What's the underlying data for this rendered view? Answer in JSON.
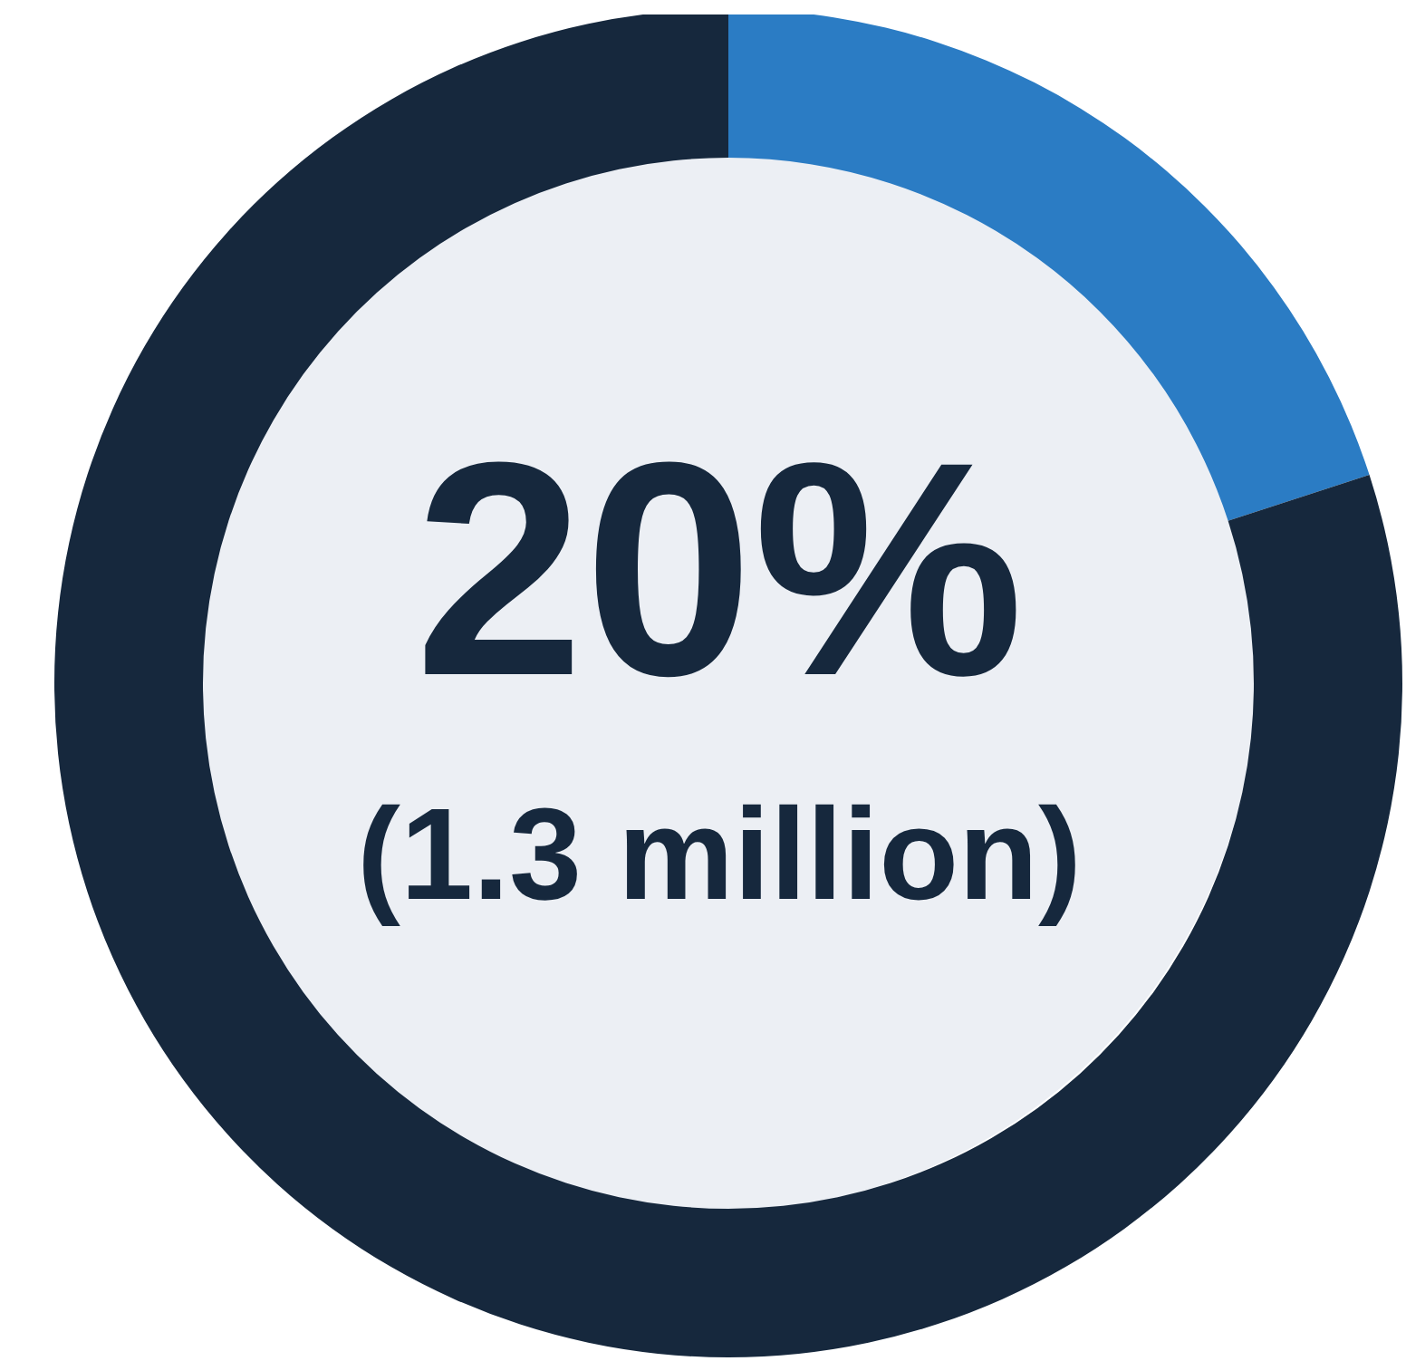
{
  "chart_data": {
    "type": "donut",
    "categories": [
      null,
      null
    ],
    "values": [
      20,
      80
    ],
    "colors": [
      "#2b7cc4",
      "#16283d"
    ],
    "annotations": [
      "20%",
      "(1.3 million)"
    ]
  }
}
